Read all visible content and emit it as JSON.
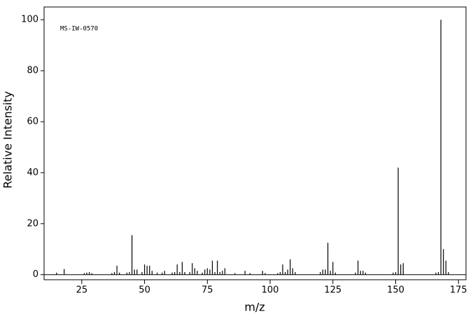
{
  "chart_data": {
    "type": "stem",
    "annotation": "MS-IW-0570",
    "xlabel": "m/z",
    "ylabel": "Relative Intensity",
    "x": [
      15,
      18,
      26,
      27,
      28,
      29,
      37,
      38,
      39,
      40,
      43,
      44,
      45,
      46,
      47,
      49,
      50,
      51,
      52,
      53,
      55,
      57,
      58,
      61,
      62,
      63,
      64,
      65,
      66,
      68,
      69,
      70,
      71,
      73,
      74,
      75,
      76,
      77,
      78,
      79,
      80,
      81,
      82,
      86,
      90,
      92,
      97,
      98,
      103,
      104,
      105,
      106,
      107,
      108,
      109,
      110,
      120,
      121,
      122,
      123,
      124,
      125,
      126,
      134,
      135,
      136,
      137,
      138,
      149,
      150,
      151,
      152,
      153,
      166,
      167,
      168,
      169,
      170,
      171
    ],
    "values": [
      0.8,
      2.2,
      0.6,
      0.8,
      1.0,
      0.6,
      0.6,
      1.0,
      3.5,
      0.8,
      0.8,
      1.0,
      15.5,
      2.0,
      2.0,
      1.0,
      4.0,
      3.5,
      3.5,
      1.5,
      0.8,
      0.8,
      1.5,
      0.8,
      1.0,
      4.0,
      1.0,
      5.0,
      1.0,
      1.0,
      4.5,
      2.5,
      1.5,
      0.8,
      2.0,
      2.5,
      2.0,
      5.5,
      1.0,
      5.5,
      1.0,
      1.5,
      2.5,
      0.6,
      1.5,
      0.6,
      1.5,
      0.6,
      0.6,
      1.0,
      4.0,
      1.0,
      2.0,
      6.0,
      2.5,
      1.0,
      1.0,
      2.0,
      2.0,
      12.5,
      1.5,
      5.0,
      0.8,
      0.8,
      5.5,
      1.5,
      1.5,
      0.8,
      0.8,
      1.0,
      42,
      4.0,
      4.5,
      0.8,
      1.0,
      100,
      10,
      5.5,
      1.0
    ],
    "color": "#000000",
    "xlim": [
      10,
      178
    ],
    "ylim": [
      -2,
      105
    ],
    "xticks": [
      25,
      50,
      75,
      100,
      125,
      150,
      175
    ],
    "yticks": [
      0,
      20,
      40,
      60,
      80,
      100
    ]
  }
}
